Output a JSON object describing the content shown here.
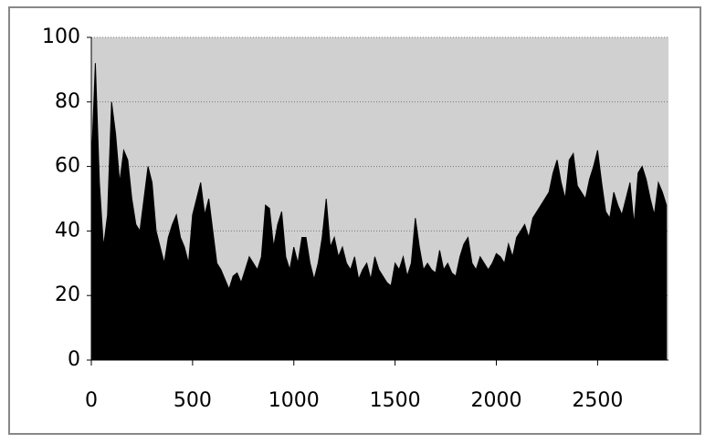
{
  "chart_data": {
    "type": "area",
    "color": "#000000",
    "background": "#d0d0d0",
    "grid": true,
    "xlim": [
      0,
      2850
    ],
    "ylim": [
      0,
      100
    ],
    "xticks": [
      0,
      500,
      1000,
      1500,
      2000,
      2500
    ],
    "yticks": [
      0,
      20,
      40,
      60,
      80,
      100
    ],
    "x": [
      0,
      20,
      40,
      60,
      80,
      100,
      120,
      140,
      160,
      180,
      200,
      220,
      240,
      260,
      280,
      300,
      320,
      340,
      360,
      380,
      400,
      420,
      440,
      460,
      480,
      500,
      520,
      540,
      560,
      580,
      600,
      620,
      640,
      660,
      680,
      700,
      720,
      740,
      760,
      780,
      800,
      820,
      840,
      860,
      880,
      900,
      920,
      940,
      960,
      980,
      1000,
      1020,
      1040,
      1060,
      1080,
      1100,
      1120,
      1140,
      1160,
      1180,
      1200,
      1220,
      1240,
      1260,
      1280,
      1300,
      1320,
      1340,
      1360,
      1380,
      1400,
      1420,
      1440,
      1460,
      1480,
      1500,
      1520,
      1540,
      1560,
      1580,
      1600,
      1620,
      1640,
      1660,
      1680,
      1700,
      1720,
      1740,
      1760,
      1780,
      1800,
      1820,
      1840,
      1860,
      1880,
      1900,
      1920,
      1940,
      1960,
      1980,
      2000,
      2020,
      2040,
      2060,
      2080,
      2100,
      2120,
      2140,
      2160,
      2180,
      2200,
      2220,
      2240,
      2260,
      2280,
      2300,
      2320,
      2340,
      2360,
      2380,
      2400,
      2420,
      2440,
      2460,
      2480,
      2500,
      2520,
      2540,
      2560,
      2580,
      2600,
      2620,
      2640,
      2660,
      2680,
      2700,
      2720,
      2740,
      2760,
      2780,
      2800,
      2820,
      2840
    ],
    "values": [
      60,
      92,
      55,
      35,
      45,
      80,
      70,
      55,
      65,
      62,
      50,
      42,
      40,
      50,
      60,
      55,
      40,
      35,
      30,
      38,
      42,
      45,
      38,
      35,
      30,
      45,
      50,
      55,
      45,
      50,
      40,
      30,
      28,
      25,
      22,
      26,
      27,
      24,
      28,
      32,
      30,
      28,
      32,
      48,
      47,
      35,
      42,
      46,
      32,
      28,
      35,
      30,
      38,
      38,
      30,
      25,
      30,
      38,
      50,
      35,
      38,
      32,
      35,
      30,
      28,
      32,
      25,
      28,
      30,
      25,
      32,
      28,
      26,
      24,
      23,
      30,
      28,
      32,
      26,
      30,
      44,
      35,
      28,
      30,
      28,
      27,
      34,
      28,
      30,
      27,
      26,
      32,
      36,
      38,
      30,
      28,
      32,
      30,
      28,
      30,
      33,
      32,
      30,
      36,
      32,
      38,
      40,
      42,
      38,
      44,
      46,
      48,
      50,
      52,
      58,
      62,
      55,
      50,
      62,
      64,
      54,
      52,
      50,
      56,
      60,
      65,
      55,
      46,
      44,
      52,
      48,
      45,
      50,
      55,
      42,
      58,
      60,
      56,
      50,
      45,
      55,
      52,
      48
    ]
  }
}
